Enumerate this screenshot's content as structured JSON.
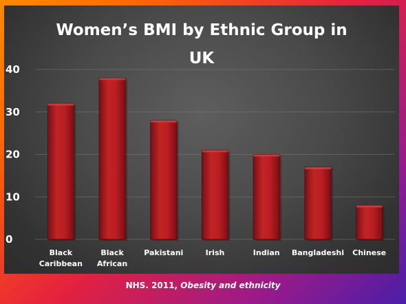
{
  "chart_data": {
    "type": "bar",
    "title": "Women’s BMI by Ethnic Group in UK",
    "title_lines": [
      "Women’s BMI by Ethnic Group in",
      "UK"
    ],
    "categories": [
      "Black Caribbean",
      "Black African",
      "Pakistani",
      "Irish",
      "Indian",
      "Bangladeshi",
      "Chinese"
    ],
    "category_lines": [
      [
        "Black",
        "Caribbean"
      ],
      [
        "Black",
        "African"
      ],
      [
        "Pakistani"
      ],
      [
        "Irish"
      ],
      [
        "Indian"
      ],
      [
        "Bangladeshi"
      ],
      [
        "Chinese"
      ]
    ],
    "values": [
      32,
      38,
      28,
      21,
      20,
      17,
      8
    ],
    "ylim": [
      0,
      40
    ],
    "yticks": [
      "0",
      "10",
      "20",
      "30",
      "40"
    ],
    "xlabel": "",
    "ylabel": "",
    "grid": true,
    "legend": "none",
    "colors": {
      "bar_top": "#a8141c",
      "bar_mid": "#c22424",
      "bar_bottom": "#7a0f14",
      "bar_edge": "#5a0a0e",
      "grid": "#7a7a7a",
      "text": "#ffffff"
    }
  },
  "source": {
    "prefix": "NHS. 2011, ",
    "title": "Obesity and ethnicity"
  }
}
